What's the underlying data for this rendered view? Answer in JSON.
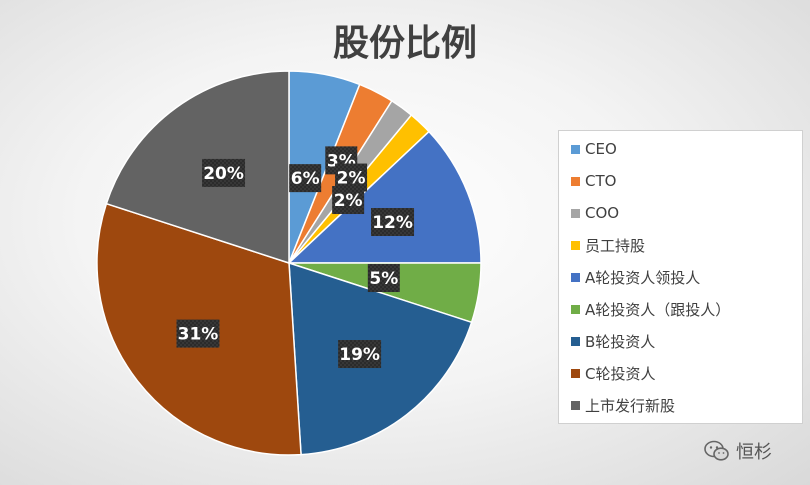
{
  "chart_data": {
    "type": "pie",
    "title": "股份比例",
    "categories": [
      "CEO",
      "CTO",
      "COO",
      "员工持股",
      "A轮投资人领投人",
      "A轮投资人（跟投人）",
      "B轮投资人",
      "C轮投资人",
      "上市发行新股"
    ],
    "values": [
      6,
      3,
      2,
      2,
      12,
      5,
      19,
      31,
      20
    ],
    "data_labels": [
      "6%",
      "3%",
      "2%",
      "2%",
      "12%",
      "5%",
      "19%",
      "31%",
      "20%"
    ],
    "colors": [
      "#5b9bd5",
      "#ed7d31",
      "#a5a5a5",
      "#ffc000",
      "#4472c4",
      "#70ad47",
      "#255e91",
      "#9e480e",
      "#636363"
    ],
    "legend_position": "right"
  },
  "watermark": {
    "text": "恒杉",
    "icon": "wechat-icon"
  }
}
